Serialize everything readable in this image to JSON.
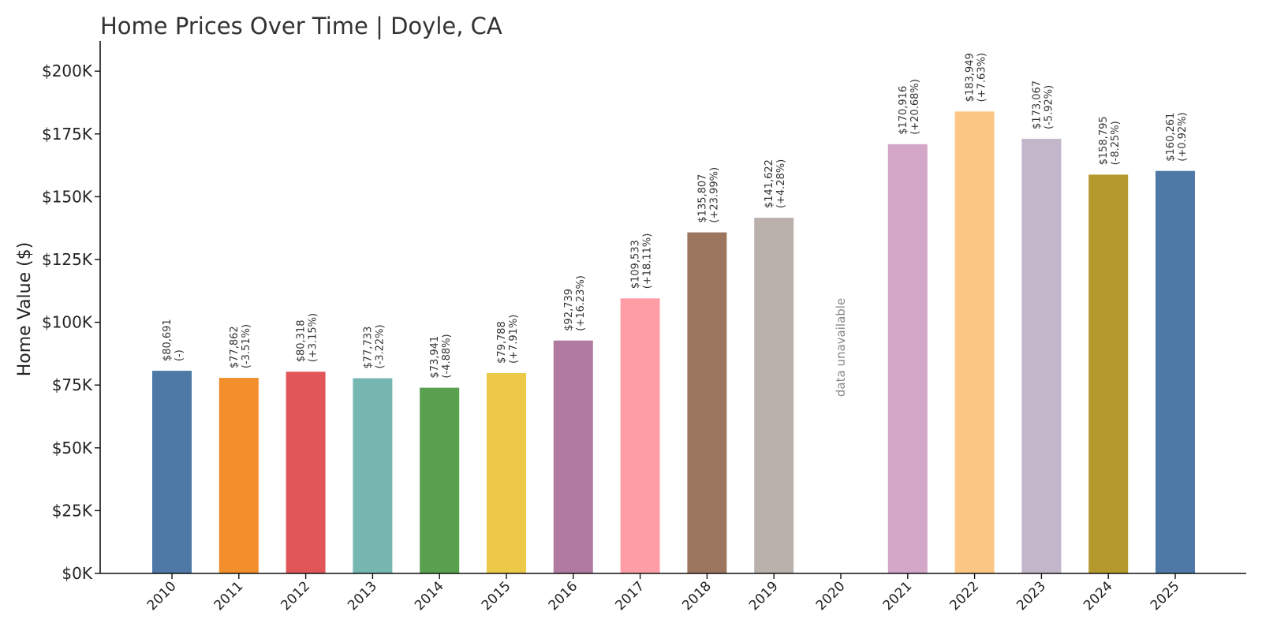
{
  "chart_data": {
    "type": "bar",
    "title": "Home Prices Over Time | Doyle, CA",
    "xlabel": "",
    "ylabel": "Home Value ($)",
    "ylim": [
      0,
      212000
    ],
    "yticks": [
      0,
      25000,
      50000,
      75000,
      100000,
      125000,
      150000,
      175000,
      200000
    ],
    "ytick_labels": [
      "$0K",
      "$25K",
      "$50K",
      "$75K",
      "$100K",
      "$125K",
      "$150K",
      "$175K",
      "$200K"
    ],
    "categories": [
      "2010",
      "2011",
      "2012",
      "2013",
      "2014",
      "2015",
      "2016",
      "2017",
      "2018",
      "2019",
      "2020",
      "2021",
      "2022",
      "2023",
      "2024",
      "2025"
    ],
    "values": [
      80691,
      77862,
      80318,
      77733,
      73941,
      79788,
      92739,
      109533,
      135807,
      141622,
      null,
      170916,
      183949,
      173067,
      158795,
      160261
    ],
    "value_labels": [
      "$80,691",
      "$77,862",
      "$80,318",
      "$77,733",
      "$73,941",
      "$79,788",
      "$92,739",
      "$109,533",
      "$135,807",
      "$141,622",
      "",
      "$170,916",
      "$183,949",
      "$173,067",
      "$158,795",
      "$160,261"
    ],
    "change_labels": [
      "(-)",
      "(-3.51%)",
      "(+3.15%)",
      "(-3.22%)",
      "(-4.88%)",
      "(+7.91%)",
      "(+16.23%)",
      "(+18.11%)",
      "(+23.99%)",
      "(+4.28%)",
      "",
      "(+20.68%)",
      "(+7.63%)",
      "(-5.92%)",
      "(-8.25%)",
      "(+0.92%)"
    ],
    "colors": [
      "#4e79a7",
      "#f28e2b",
      "#e15759",
      "#76b7b2",
      "#59a14f",
      "#edc948",
      "#b07aa1",
      "#ff9da7",
      "#9c755f",
      "#bab0ac",
      "#ffffff",
      "#d4a6c8",
      "#fcc784",
      "#c3b5ca",
      "#b5992d",
      "#4e79a7"
    ],
    "missing_label": "data unavailable",
    "grid": false
  }
}
